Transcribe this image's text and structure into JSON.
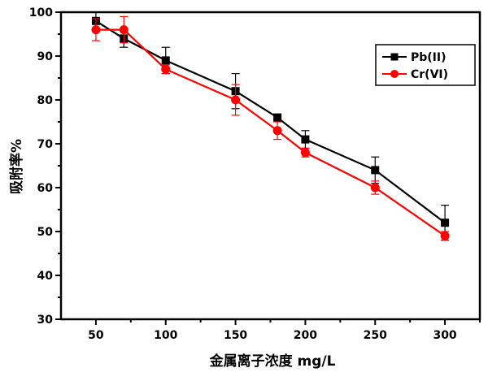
{
  "chart_data": {
    "type": "line",
    "title": "",
    "xlabel": "金属离子浓度 mg/L",
    "ylabel": "吸附率%",
    "xlim": [
      25,
      325
    ],
    "ylim": [
      30,
      100
    ],
    "xticks": [
      50,
      100,
      150,
      200,
      250,
      300
    ],
    "yticks": [
      30,
      40,
      50,
      60,
      70,
      80,
      90,
      100
    ],
    "grid": false,
    "legend_position": "top-right",
    "x": [
      50,
      70,
      100,
      150,
      180,
      200,
      250,
      300
    ],
    "series": [
      {
        "name": "Pb(II)",
        "color": "#000000",
        "marker": "square",
        "values": [
          98,
          94,
          89,
          82,
          76,
          71,
          64,
          52
        ],
        "errors": [
          2,
          2,
          3,
          4,
          0.5,
          2,
          3,
          4
        ]
      },
      {
        "name": "Cr(VI)",
        "color": "#ff0000",
        "marker": "circle",
        "values": [
          96,
          96,
          87,
          80,
          73,
          68,
          60,
          49
        ],
        "errors": [
          2.5,
          3,
          1,
          3.5,
          2,
          1,
          1.5,
          1
        ]
      }
    ]
  }
}
